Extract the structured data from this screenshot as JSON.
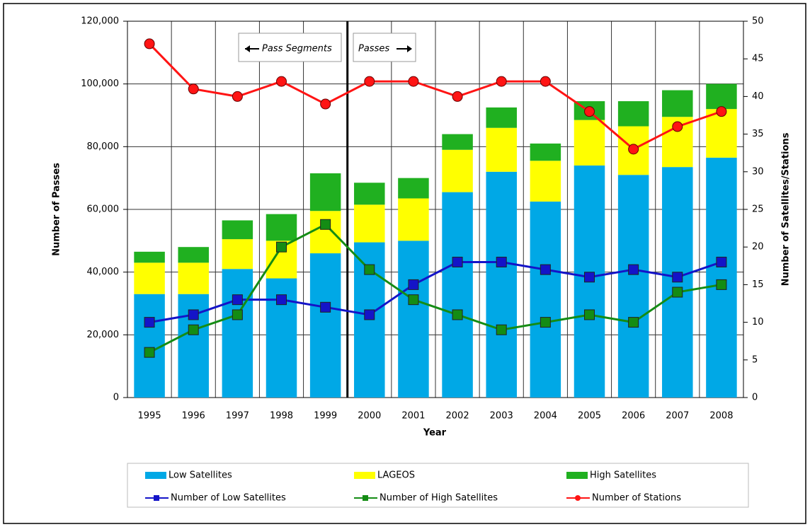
{
  "chart_data": {
    "type": "bar",
    "x_label": "Year",
    "y_label": "Number of Passes",
    "y2_label": "Number of Satellites/Stations",
    "annotations": [
      "Pass Segments",
      "Passes"
    ],
    "categories": [
      "1995",
      "1996",
      "1997",
      "1998",
      "1999",
      "2000",
      "2001",
      "2002",
      "2003",
      "2004",
      "2005",
      "2006",
      "2007",
      "2008"
    ],
    "series": [
      {
        "name": "Low Satellites",
        "type": "bar",
        "color": "#00a8e6",
        "values": [
          33000,
          33000,
          41000,
          38000,
          46000,
          49500,
          50000,
          65500,
          72000,
          62500,
          74000,
          71000,
          73500,
          76500
        ]
      },
      {
        "name": "LAGEOS",
        "type": "bar",
        "color": "#ffff00",
        "values": [
          10000,
          10000,
          9500,
          12000,
          13500,
          12000,
          13500,
          13500,
          14000,
          13000,
          14500,
          15500,
          16000,
          15500
        ]
      },
      {
        "name": "High Satellites",
        "type": "bar",
        "color": "#20b020",
        "values": [
          3500,
          5000,
          6000,
          8500,
          12000,
          7000,
          6500,
          5000,
          6500,
          5500,
          6000,
          8000,
          8500,
          8000
        ]
      },
      {
        "name": "Number of Low Satellites",
        "type": "line",
        "axis": "y2",
        "marker": "square",
        "color": "#1414c8",
        "values": [
          10,
          11,
          13,
          13,
          12,
          11,
          15,
          18,
          18,
          17,
          16,
          17,
          16,
          18
        ]
      },
      {
        "name": "Number of High Satellites",
        "type": "line",
        "axis": "y2",
        "marker": "square",
        "color": "#148c14",
        "values": [
          6,
          9,
          11,
          20,
          23,
          17,
          13,
          11,
          9,
          10,
          11,
          10,
          14,
          15
        ]
      },
      {
        "name": "Number of Stations",
        "type": "line",
        "axis": "y2",
        "marker": "circle",
        "color": "#ff1414",
        "values": [
          47,
          41,
          40,
          42,
          39,
          42,
          42,
          40,
          42,
          42,
          38,
          33,
          36,
          38
        ]
      }
    ],
    "ylim": [
      0,
      120000
    ],
    "yticks": [
      0,
      {
        "value": 20000,
        "label": "20,000"
      },
      {
        "value": 40000,
        "label": "40,000"
      },
      {
        "value": 60000,
        "label": "60,000"
      },
      {
        "value": 80000,
        "label": "80,000"
      },
      {
        "value": 100000,
        "label": "100,000"
      },
      {
        "value": 120000,
        "label": "120,000"
      }
    ],
    "y2lim": [
      0,
      50
    ],
    "y2ticks": [
      0,
      5,
      10,
      15,
      20,
      25,
      30,
      35,
      40,
      45,
      50
    ],
    "grid": true,
    "legend": "bottom"
  }
}
